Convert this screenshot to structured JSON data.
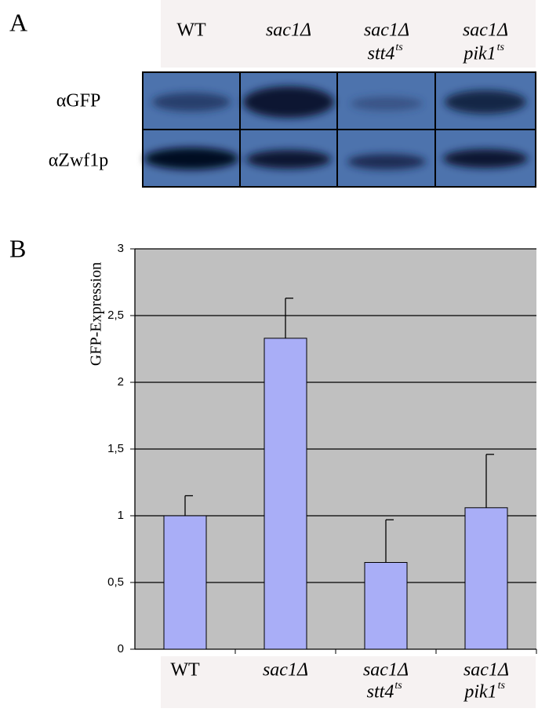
{
  "blot": {
    "label": "A",
    "lanes": [
      {
        "line1": "WT"
      },
      {
        "line1": "sac1Δ"
      },
      {
        "line1": "sac1Δ",
        "line2": "stt4",
        "sup": "ts"
      },
      {
        "line1": "sac1Δ",
        "line2": "pik1",
        "sup": "ts"
      }
    ],
    "rows": [
      "αGFP",
      "αZwf1p"
    ]
  },
  "chart_data": {
    "type": "bar",
    "panel_label": "B",
    "y_label": "GFP-Expression",
    "categories": [
      {
        "line1": "WT"
      },
      {
        "line1": "sac1Δ"
      },
      {
        "line1": "sac1Δ",
        "line2": "stt4",
        "sup": "ts"
      },
      {
        "line1": "sac1Δ",
        "line2": "pik1",
        "sup": "ts"
      }
    ],
    "values": [
      1,
      2.33,
      0.65,
      1.06
    ],
    "errors": [
      0.15,
      0.3,
      0.32,
      0.4
    ],
    "color": "#a9aef7",
    "ylim": [
      0,
      3
    ],
    "yticks": [
      0,
      {
        "value": 0.5,
        "label": "0,5"
      },
      1,
      {
        "value": 1.5,
        "label": "1,5"
      },
      2,
      {
        "value": 2.5,
        "label": "2,5"
      },
      3
    ],
    "grid": true
  }
}
